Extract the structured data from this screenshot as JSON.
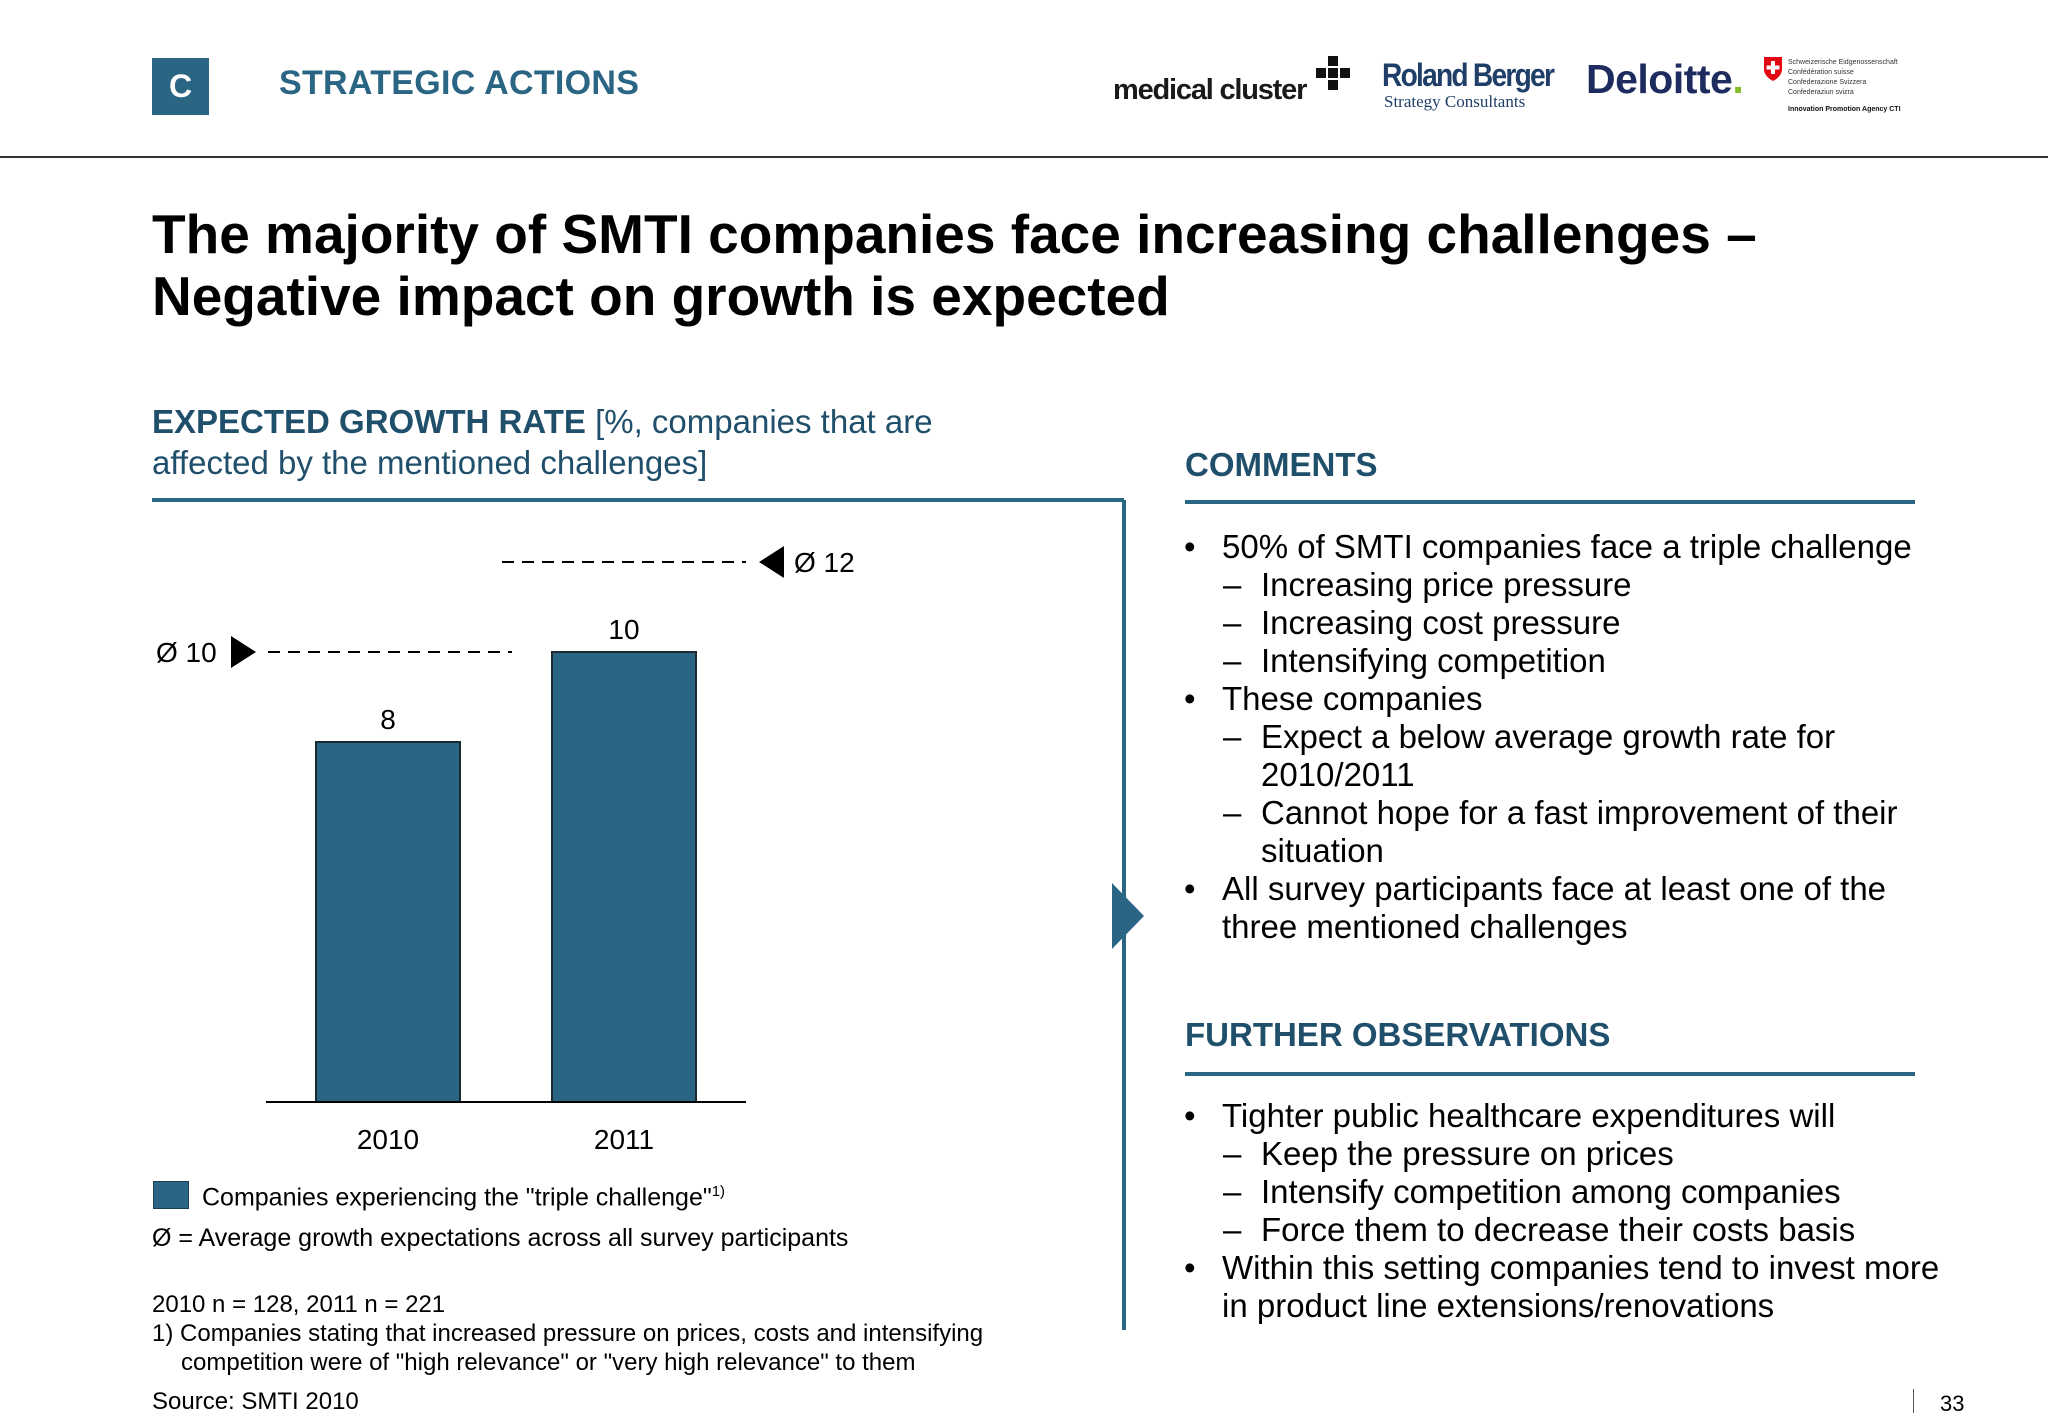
{
  "header": {
    "section_letter": "C",
    "section_title": "STRATEGIC ACTIONS",
    "logos": {
      "medical_cluster": "medical cluster",
      "roland_berger_name": "Roland Berger",
      "roland_berger_sub": "Strategy Consultants",
      "deloitte": "Deloitte",
      "cti_lines": [
        "Schweizerische Eidgenossenschaft",
        "Confédération suisse",
        "Confederazione Svizzera",
        "Confederaziun svizra"
      ],
      "cti_agency": "Innovation Promotion Agency CTI"
    }
  },
  "headline": {
    "line1": "The majority of SMTI companies face increasing challenges –",
    "line2": "Negative impact on growth is expected"
  },
  "chart_title": {
    "bold": "EXPECTED GROWTH RATE",
    "rest_line1": " [%, companies that are",
    "rest_line2": "affected by the mentioned challenges]"
  },
  "chart_data": {
    "type": "bar",
    "categories": [
      "2010",
      "2011"
    ],
    "values": [
      8,
      10
    ],
    "data_labels": [
      "8",
      "10"
    ],
    "series": [
      {
        "name": "Companies experiencing the \"triple challenge\"",
        "values": [
          8,
          10
        ]
      }
    ],
    "averages": [
      {
        "category": "2010",
        "value": 10,
        "label": "Ø 10"
      },
      {
        "category": "2011",
        "value": 12,
        "label": "Ø 12"
      }
    ],
    "ylim": [
      0,
      12
    ],
    "bar_color": "#2a6584",
    "title": "",
    "xlabel": "",
    "ylabel": ""
  },
  "legend": {
    "series_label": "Companies experiencing the \"triple challenge\"",
    "series_footnote": "1)",
    "avg_label": "Ø = Average growth expectations across all survey participants"
  },
  "notes": {
    "sample": "2010 n = 128, 2011 n = 221",
    "footnote_line1": "1) Companies stating that increased pressure on prices, costs and intensifying",
    "footnote_line2": "competition were of \"high relevance\" or \"very high relevance\" to them",
    "source": "Source:  SMTI 2010"
  },
  "comments": {
    "heading": "COMMENTS",
    "items": [
      {
        "text": "50% of SMTI companies face a triple challenge",
        "sub": [
          "Increasing price pressure",
          "Increasing cost pressure",
          "Intensifying competition"
        ]
      },
      {
        "text": "These companies",
        "sub": [
          "Expect a below average growth rate for 2010/2011",
          "Cannot hope for a fast improvement of their situation"
        ]
      },
      {
        "text": "All survey participants face at least one of the three mentioned challenges",
        "sub": []
      }
    ]
  },
  "observations": {
    "heading": "FURTHER OBSERVATIONS",
    "items": [
      {
        "text": "Tighter public healthcare expenditures will",
        "sub": [
          "Keep the pressure on prices",
          "Intensify competition among companies",
          "Force them to decrease their costs basis"
        ]
      },
      {
        "text": "Within this setting companies tend to invest more in product line extensions/renovations",
        "sub": []
      }
    ]
  },
  "page_number": "33",
  "colors": {
    "accent": "#2a6584",
    "heading": "#1f4f6b",
    "deloitte_dot": "#86bc25",
    "swiss_red": "#e30613"
  }
}
